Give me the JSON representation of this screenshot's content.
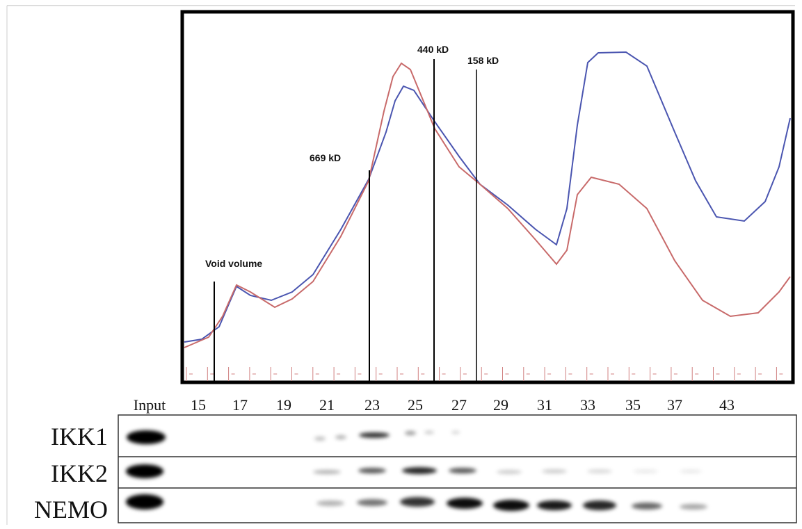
{
  "chromatogram": {
    "markers": [
      "Void volume",
      "669 kD",
      "440 kD",
      "158 kD"
    ]
  },
  "lanes": [
    "Input",
    "15",
    "17",
    "19",
    "21",
    "23",
    "25",
    "27",
    "29",
    "31",
    "33",
    "35",
    "37",
    "43"
  ],
  "blot": {
    "rows": [
      "IKK1",
      "IKK2",
      "NEMO"
    ]
  }
}
